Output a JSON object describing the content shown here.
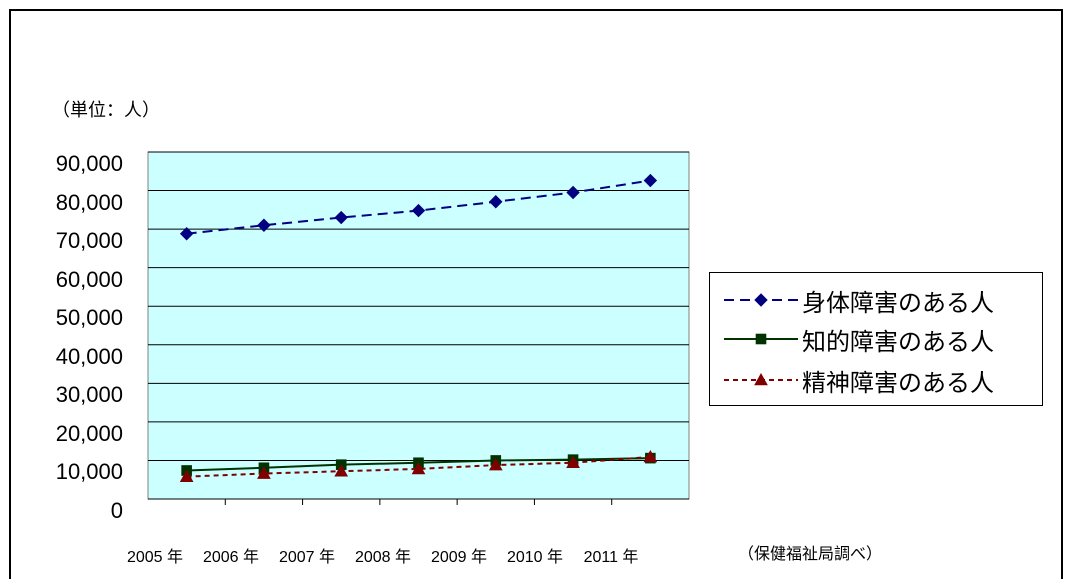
{
  "unit_label": "（単位：人）",
  "source_label": "（保健福祉局調べ）",
  "chart_data": {
    "type": "line",
    "categories": [
      "2005 年",
      "2006 年",
      "2007 年",
      "2008 年",
      "2009 年",
      "2010 年",
      "2011 年"
    ],
    "ylim": [
      0,
      90000
    ],
    "yticks": [
      "0",
      "10,000",
      "20,000",
      "30,000",
      "40,000",
      "50,000",
      "60,000",
      "70,000",
      "80,000",
      "90,000"
    ],
    "grid": true,
    "plot_background": "#ccffff",
    "legend_position": "right",
    "series": [
      {
        "name": "身体障害のある人",
        "values": [
          68800,
          71000,
          73000,
          74800,
          77100,
          79500,
          82600
        ],
        "color": "#000080",
        "marker": "diamond",
        "line": "dashed"
      },
      {
        "name": "知的障害のある人",
        "values": [
          7400,
          8100,
          8900,
          9400,
          10000,
          10200,
          10600
        ],
        "color": "#003300",
        "marker": "square",
        "line": "solid"
      },
      {
        "name": "精神障害のある人",
        "values": [
          5800,
          6600,
          7200,
          7800,
          8800,
          9400,
          10900
        ],
        "color": "#800000",
        "marker": "triangle",
        "line": "dashed"
      }
    ]
  }
}
